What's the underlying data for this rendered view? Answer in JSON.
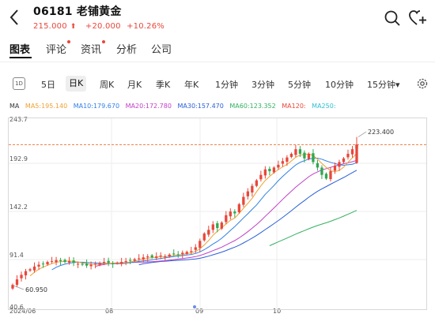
{
  "header": {
    "stock_code_name": "06181 老铺黄金",
    "price": "215.000",
    "price_arrow": "⬆",
    "change": "+20.000",
    "change_pct": "+10.26%"
  },
  "tabs": [
    {
      "label": "图表",
      "active": true,
      "dot": false
    },
    {
      "label": "评论",
      "active": false,
      "dot": true
    },
    {
      "label": "资讯",
      "active": false,
      "dot": true
    },
    {
      "label": "分析",
      "active": false,
      "dot": false
    },
    {
      "label": "公司",
      "active": false,
      "dot": false
    }
  ],
  "periods": {
    "one_day": "1D",
    "items": [
      "5日",
      "日K",
      "周K",
      "月K",
      "季K",
      "年K",
      "1分钟",
      "3分钟",
      "5分钟",
      "10分钟",
      "15分钟▾"
    ],
    "active": "日K"
  },
  "ma_legend": {
    "label": "MA",
    "items": [
      {
        "text": "MA5:195.140",
        "color": "#f0a030"
      },
      {
        "text": "MA10:179.670",
        "color": "#2f7fe8"
      },
      {
        "text": "MA20:172.780",
        "color": "#c040c8"
      },
      {
        "text": "MA30:157.470",
        "color": "#2a5fd8"
      },
      {
        "text": "MA60:123.352",
        "color": "#34b060"
      },
      {
        "text": "MA120:",
        "color": "#e8473b"
      },
      {
        "text": "MA250:",
        "color": "#30c0d0"
      }
    ]
  },
  "chart_data": {
    "type": "candlestick",
    "y_axis_labels": [
      "243.7",
      "192.9",
      "142.2",
      "91.4",
      "40.6"
    ],
    "ylim": [
      40.6,
      243.7
    ],
    "x_labels": [
      "2024/06",
      "08",
      "09",
      "10"
    ],
    "max_label": "223.400",
    "min_label": "60.950",
    "reference_price": 215.0,
    "colors": {
      "up": "#e8473b",
      "down": "#2fa84f",
      "ma5": "#f0a030",
      "ma10": "#2f7fe8",
      "ma20": "#c040c8",
      "ma30": "#2a5fd8",
      "ma60": "#34b060",
      "ref_line": "#f07a3a"
    }
  }
}
